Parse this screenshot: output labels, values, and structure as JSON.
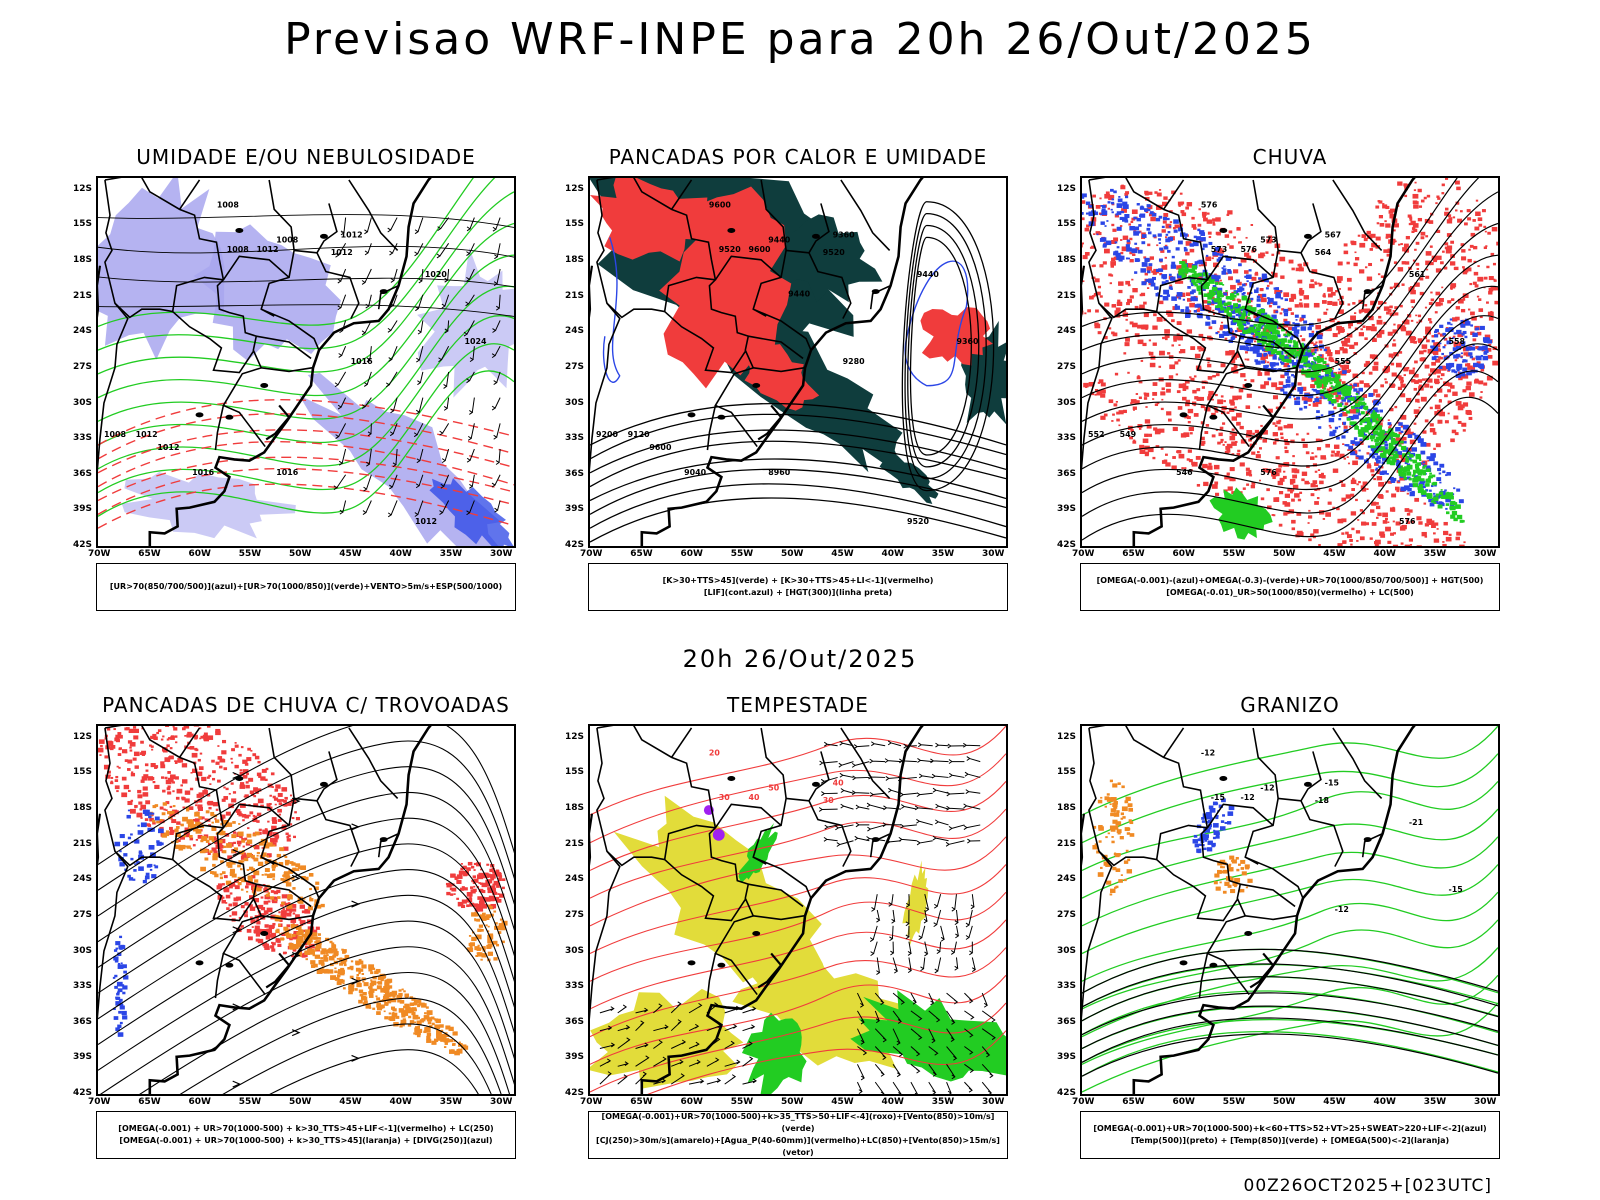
{
  "header": {
    "title": "Previsao WRF-INPE  para 20h 26/Out/2025",
    "mid_title": "20h 26/Out/2025",
    "footer": "00Z26OCT2025+[023UTC]"
  },
  "axes": {
    "lat_labels": [
      "12S",
      "15S",
      "18S",
      "21S",
      "24S",
      "27S",
      "30S",
      "33S",
      "36S",
      "39S",
      "42S"
    ],
    "lon_labels": [
      "70W",
      "65W",
      "60W",
      "55W",
      "50W",
      "45W",
      "40W",
      "35W",
      "30W"
    ]
  },
  "panels": [
    {
      "id": "umidade",
      "title": "UMIDADE E/OU NEBULOSIDADE",
      "legend": [
        "[UR>70(850/700/500)](azul)+[UR>70(1000/850)](verde)+VENTO>5m/s+ESP(500/1000)"
      ],
      "contour_labels": [
        "1008",
        "1012",
        "1008",
        "1008",
        "1012",
        "1012",
        "1020",
        "1024",
        "1016",
        "1008",
        "1012",
        "1016",
        "1016",
        "1012",
        "1012"
      ]
    },
    {
      "id": "pancadas-calor",
      "title": "PANCADAS POR CALOR E UMIDADE",
      "legend": [
        "[K>30+TTS>45](verde) + [K>30+TTS>45+LI<-1](vermelho)",
        "[LIF](cont.azul) + [HGT(300)](linha preta)"
      ],
      "contour_labels": [
        "9600",
        "9600",
        "9520",
        "9440",
        "9360",
        "9520",
        "9440",
        "9360",
        "9280",
        "9200",
        "9120",
        "9040",
        "8960",
        "9520",
        "9600",
        "9440"
      ]
    },
    {
      "id": "chuva",
      "title": "CHUVA",
      "legend": [
        "[OMEGA(-0.001)-(azul)+OMEGA(-0.3)-(verde)+UR>70(1000/850/700/500)] + HGT(500)",
        "[OMEGA(-0.01)_UR>50(1000/850)(vermelho) + LC(500)"
      ],
      "contour_labels": [
        "576",
        "576",
        "573",
        "573",
        "567",
        "564",
        "561",
        "558",
        "555",
        "552",
        "549",
        "546",
        "576",
        "576"
      ]
    },
    {
      "id": "trovoadas",
      "title": "PANCADAS DE CHUVA C/ TROVOADAS",
      "legend": [
        "[OMEGA(-0.001) + UR>70(1000-500) + k>30_TTS>45+LIF<-1](vermelho) + LC(250)",
        "[OMEGA(-0.001) + UR>70(1000-500) + k>30_TTS>45](laranja) + [DIVG(250)](azul)"
      ],
      "contour_labels": []
    },
    {
      "id": "tempestade",
      "title": "TEMPESTADE",
      "legend": [
        "[OMEGA(-0.001)+UR>70(1000-500)+k>35_TTS>50+LIF<-4](roxo)+[Vento(850)>10m/s](verde)",
        "[CJ(250)>30m/s](amarelo)+[Agua_P(40-60mm)](vermelho)+LC(850)+[Vento(850)>15m/s](vetor)"
      ],
      "contour_labels": [
        "20",
        "40",
        "30",
        "50",
        "40",
        "30"
      ]
    },
    {
      "id": "granizo",
      "title": "GRANIZO",
      "legend": [
        "[OMEGA(-0.001)+UR>70(1000-500)+k<60+TTS>52+VT>25+SWEAT>220+LIF<-2](azul)",
        "[Temp(500)](preto) + [Temp(850)](verde) + [OMEGA(500)<-2](laranja)"
      ],
      "contour_labels": [
        "-12",
        "-12",
        "-15",
        "-12",
        "-15",
        "-18",
        "-21",
        "-15",
        "-12"
      ]
    }
  ],
  "colors": {
    "red": "#f03c3c",
    "blue": "#2b46e6",
    "green": "#22cc22",
    "lavender": "#a8a6ee",
    "dark_teal": "#0f3d3d",
    "yellow": "#e2dc3a",
    "orange": "#f08a24",
    "purple": "#a020f0"
  }
}
